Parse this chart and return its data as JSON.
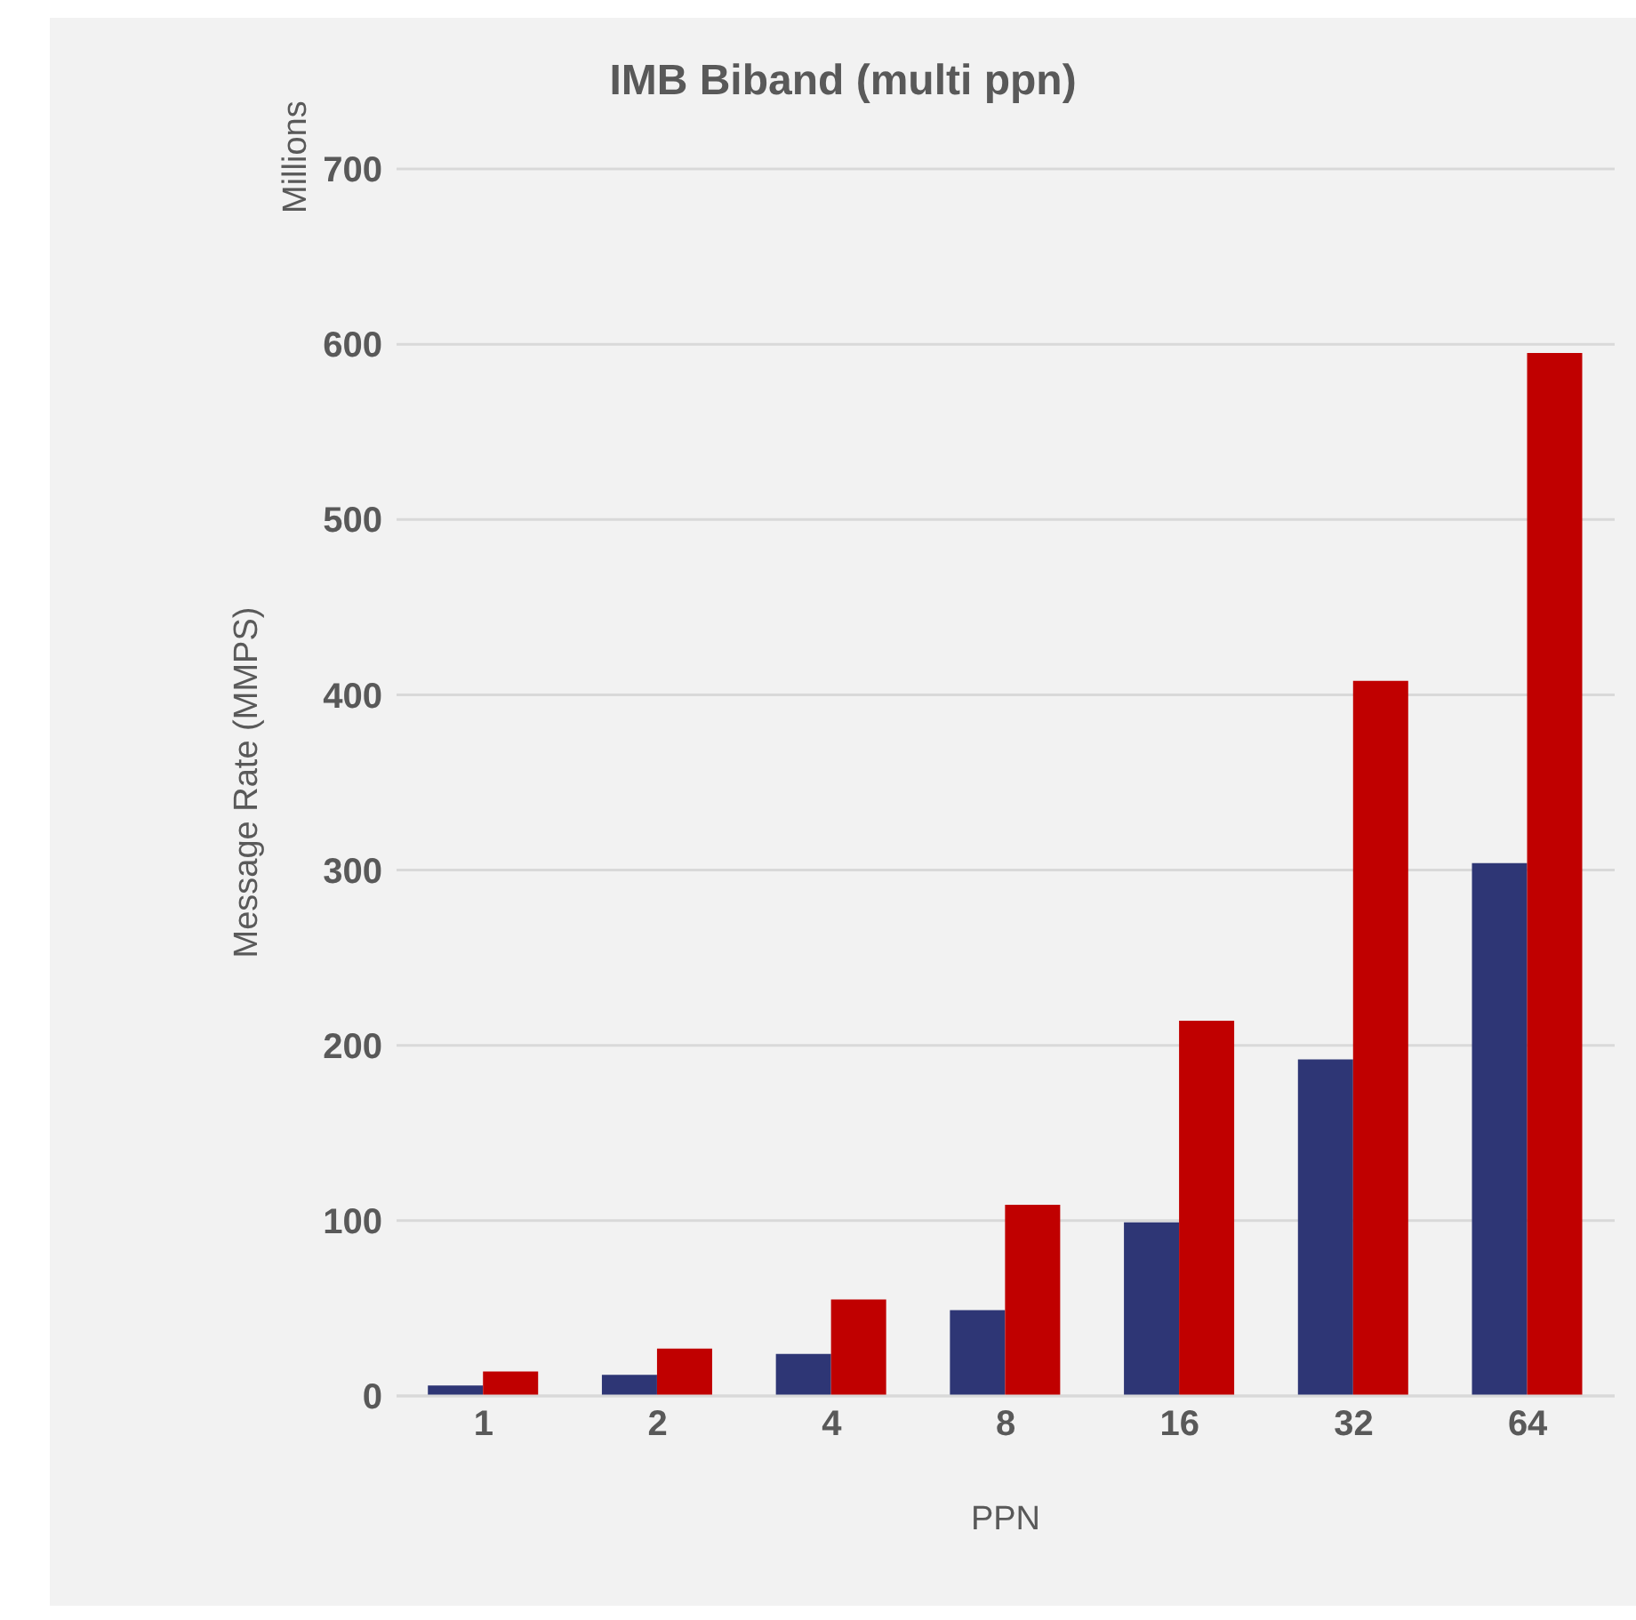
{
  "chart_data": {
    "type": "bar",
    "title": "IMB Biband (multi ppn)",
    "xlabel": "PPN",
    "ylabel": "Message Rate (MMPS)",
    "annotations": [
      "Millions"
    ],
    "categories": [
      "1",
      "2",
      "4",
      "8",
      "16",
      "32",
      "64"
    ],
    "series": [
      {
        "color": "#2e3675",
        "values": [
          6,
          12,
          24,
          49,
          99,
          192,
          304
        ]
      },
      {
        "color": "#c00000",
        "values": [
          14,
          27,
          55,
          109,
          214,
          408,
          595
        ]
      }
    ],
    "ylim": [
      0,
      700
    ],
    "yticks": [
      0,
      100,
      200,
      300,
      400,
      500,
      600,
      700
    ],
    "grid": "y",
    "legend": false
  }
}
